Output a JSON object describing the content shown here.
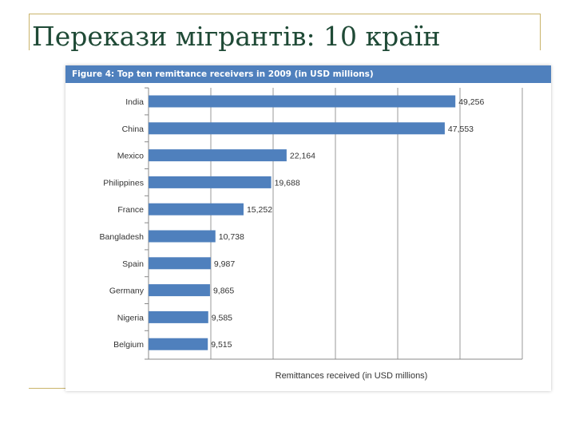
{
  "slide": {
    "title": "Перекази мігрантів: 10 країн"
  },
  "figure": {
    "header": "Figure 4: Top ten remittance receivers in 2009 (in USD millions)"
  },
  "colors": {
    "bar": "#4f80bd",
    "header_bg": "#4f80bd",
    "title_text": "#1f4a36",
    "decoration": "#c9b36a",
    "grid": "#999999"
  },
  "chart_data": {
    "type": "bar",
    "orientation": "horizontal",
    "categories": [
      "India",
      "China",
      "Mexico",
      "Philippines",
      "France",
      "Bangladesh",
      "Spain",
      "Germany",
      "Nigeria",
      "Belgium"
    ],
    "values": [
      49256,
      47553,
      22164,
      19688,
      15252,
      10738,
      9987,
      9865,
      9585,
      9515
    ],
    "value_labels": [
      "49,256",
      "47,553",
      "22,164",
      "19,688",
      "15,252",
      "10,738",
      "9,987",
      "9,865",
      "9,585",
      "9,515"
    ],
    "title": "Figure 4: Top ten remittance receivers in 2009 (in USD millions)",
    "xlabel": "Remittances received (in USD millions)",
    "ylabel": "",
    "xlim": [
      0,
      60000
    ],
    "x_gridlines": [
      10000,
      20000,
      30000,
      40000,
      50000,
      60000
    ],
    "x_tick_labels_shown": false,
    "grid": true,
    "legend": "none"
  }
}
